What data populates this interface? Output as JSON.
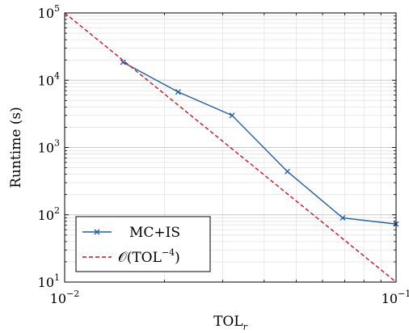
{
  "chart_data": {
    "type": "line",
    "xscale": "log",
    "yscale": "log",
    "xlim": [
      0.01,
      0.1
    ],
    "ylim": [
      10,
      100000
    ],
    "xlabel": "TOL",
    "xlabel_sub": "r",
    "ylabel": "Runtime (s)",
    "x_ticks": [
      {
        "value": 0.01,
        "base": "10",
        "exp": "−2"
      },
      {
        "value": 0.1,
        "base": "10",
        "exp": "−1"
      }
    ],
    "y_ticks": [
      {
        "value": 10,
        "base": "10",
        "exp": "1"
      },
      {
        "value": 100,
        "base": "10",
        "exp": "2"
      },
      {
        "value": 1000,
        "base": "10",
        "exp": "3"
      },
      {
        "value": 10000,
        "base": "10",
        "exp": "4"
      },
      {
        "value": 100000,
        "base": "10",
        "exp": "5"
      }
    ],
    "grid": true,
    "legend_position": "bottom-left",
    "series": [
      {
        "name": "MC+IS",
        "color": "#1f5fa0",
        "style": "solid",
        "marker": "x",
        "x": [
          0.015,
          0.022,
          0.032,
          0.047,
          0.069,
          0.1
        ],
        "y": [
          18500,
          6700,
          3000,
          440,
          90,
          73
        ]
      },
      {
        "name": "𝒪(TOL",
        "name_exp": "−4",
        "name_suffix": ")",
        "color": "#cc1122",
        "style": "dashed",
        "marker": "none",
        "x": [
          0.01,
          0.1
        ],
        "y": [
          100000,
          10
        ]
      }
    ]
  }
}
